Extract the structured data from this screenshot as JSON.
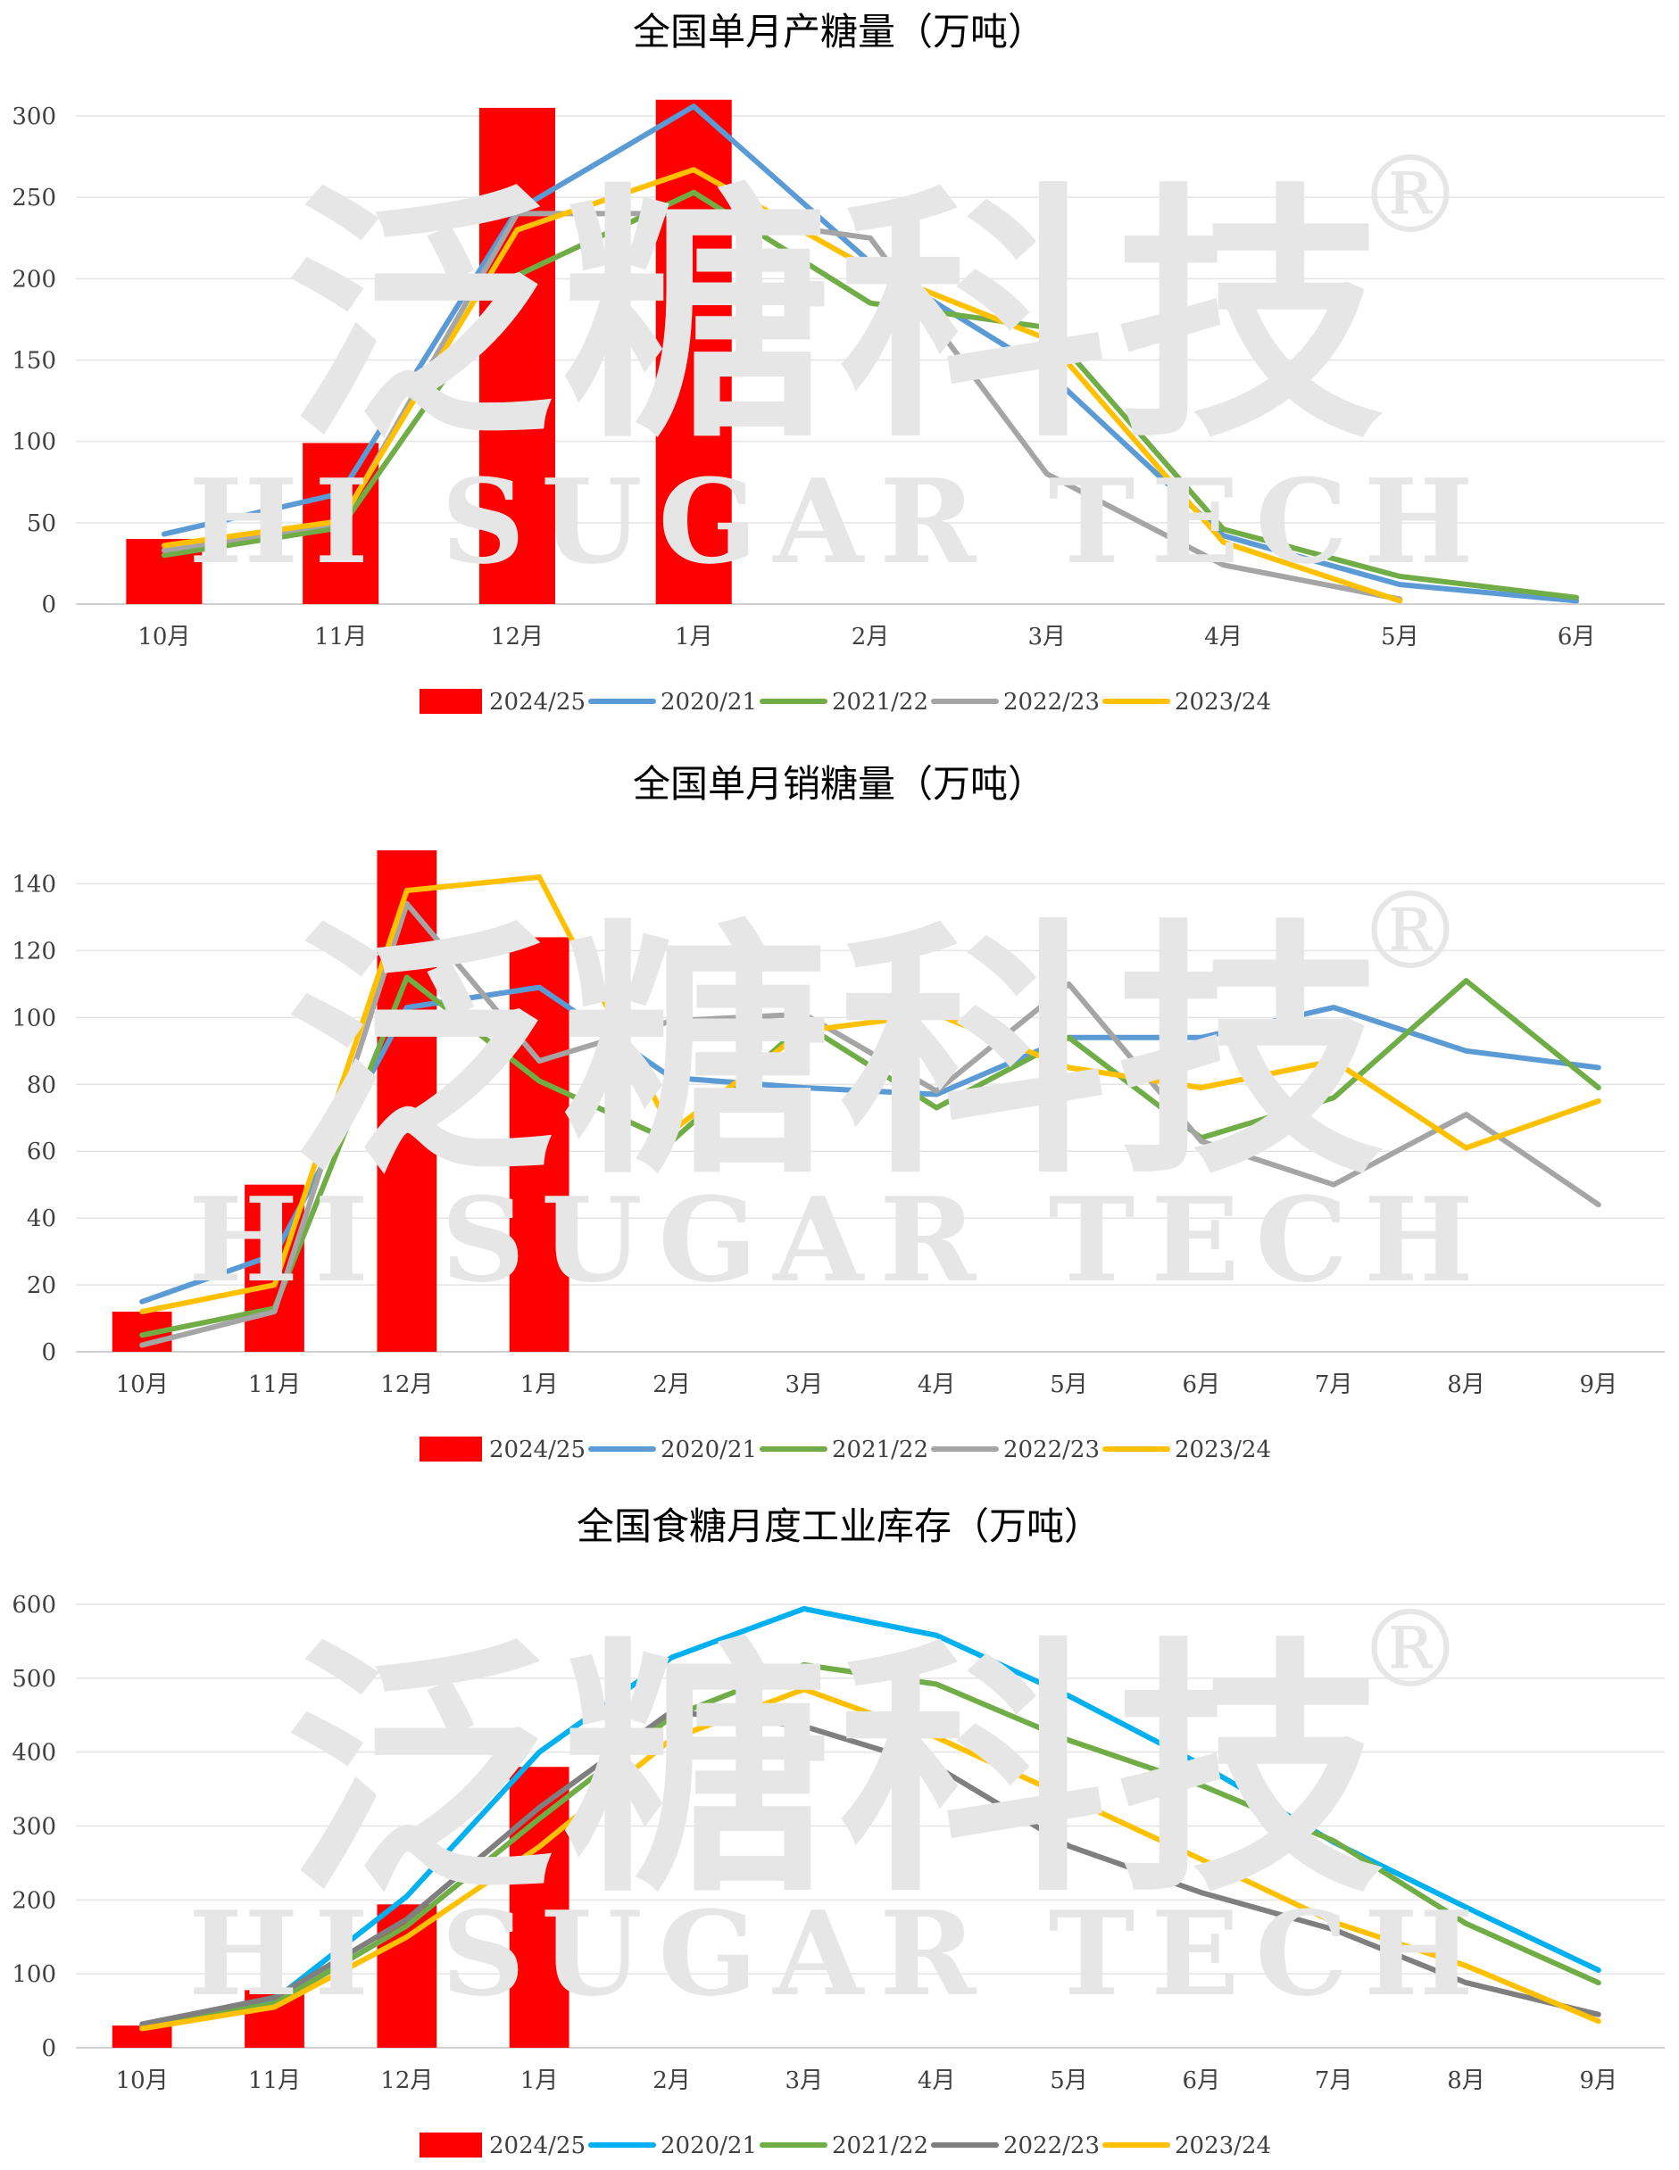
{
  "watermark": {
    "cn": "泛糖科技",
    "en": "HI SUGAR TECH",
    "mark": "®",
    "color": "#e6e6e6"
  },
  "chart_data": [
    {
      "type": "bar+line",
      "title": "全国单月产糖量（万吨）",
      "categories": [
        "10月",
        "11月",
        "12月",
        "1月",
        "2月",
        "3月",
        "4月",
        "5月",
        "6月"
      ],
      "ylim": [
        0,
        300
      ],
      "yticks": [
        "0",
        "50",
        "100",
        "150",
        "200",
        "250",
        "300"
      ],
      "grid": true,
      "legend_position": "bottom",
      "bar_series": {
        "name": "2024/25",
        "color": "#ff0000",
        "values": [
          40,
          99,
          305,
          310,
          null,
          null,
          null,
          null,
          null
        ]
      },
      "series": [
        {
          "name": "2020/21",
          "color": "#5b9bd5",
          "values": [
            43,
            68,
            242,
            306,
            210,
            143,
            42,
            12,
            2
          ]
        },
        {
          "name": "2021/22",
          "color": "#70ad47",
          "values": [
            30,
            47,
            202,
            253,
            185,
            170,
            46,
            17,
            4
          ]
        },
        {
          "name": "2022/23",
          "color": "#a5a5a5",
          "values": [
            33,
            50,
            240,
            240,
            225,
            80,
            24,
            3,
            null
          ]
        },
        {
          "name": "2023/24",
          "color": "#ffc000",
          "values": [
            36,
            51,
            230,
            267,
            206,
            163,
            38,
            2,
            null
          ]
        }
      ]
    },
    {
      "type": "bar+line",
      "title": "全国单月销糖量（万吨）",
      "categories": [
        "10月",
        "11月",
        "12月",
        "1月",
        "2月",
        "3月",
        "4月",
        "5月",
        "6月",
        "7月",
        "8月",
        "9月"
      ],
      "ylim": [
        0,
        150
      ],
      "yticks": [
        "0",
        "20",
        "40",
        "60",
        "80",
        "100",
        "120",
        "140"
      ],
      "grid": true,
      "legend_position": "bottom",
      "bar_series": {
        "name": "2024/25",
        "color": "#ff0000",
        "values": [
          12,
          50,
          150,
          124,
          null,
          null,
          null,
          null,
          null,
          null,
          null,
          null
        ]
      },
      "series": [
        {
          "name": "2020/21",
          "color": "#5b9bd5",
          "values": [
            15,
            29,
            103,
            109,
            82,
            79,
            77,
            94,
            94,
            103,
            90,
            85
          ]
        },
        {
          "name": "2021/22",
          "color": "#70ad47",
          "values": [
            5,
            13,
            112,
            81,
            63,
            98,
            73,
            94,
            64,
            76,
            111,
            79
          ]
        },
        {
          "name": "2022/23",
          "color": "#a5a5a5",
          "values": [
            2,
            12,
            134,
            87,
            99,
            101,
            78,
            110,
            63,
            50,
            71,
            44
          ]
        },
        {
          "name": "2023/24",
          "color": "#ffc000",
          "values": [
            12,
            20,
            138,
            142,
            66,
            96,
            101,
            85,
            79,
            87,
            61,
            75
          ]
        }
      ]
    },
    {
      "type": "bar+line",
      "title": "全国食糖月度工业库存（万吨）",
      "categories": [
        "10月",
        "11月",
        "12月",
        "1月",
        "2月",
        "3月",
        "4月",
        "5月",
        "6月",
        "7月",
        "8月",
        "9月"
      ],
      "ylim": [
        0,
        600
      ],
      "yticks": [
        "0",
        "100",
        "200",
        "300",
        "400",
        "500",
        "600"
      ],
      "grid": true,
      "legend_position": "bottom",
      "bar_series": {
        "name": "2024/25",
        "color": "#ff0000",
        "values": [
          30,
          78,
          194,
          380,
          null,
          null,
          null,
          null,
          null,
          null,
          null,
          null
        ]
      },
      "series": [
        {
          "name": "2020/21",
          "color": "#00b0f0",
          "values": [
            28,
            65,
            205,
            400,
            528,
            594,
            558,
            476,
            383,
            278,
            190,
            105
          ]
        },
        {
          "name": "2021/22",
          "color": "#70ad47",
          "values": [
            28,
            60,
            165,
            310,
            448,
            518,
            492,
            416,
            355,
            280,
            168,
            88
          ]
        },
        {
          "name": "2022/23",
          "color": "#7f7f7f",
          "values": [
            32,
            68,
            174,
            325,
            455,
            435,
            380,
            273,
            210,
            160,
            88,
            45
          ]
        },
        {
          "name": "2023/24",
          "color": "#ffc000",
          "values": [
            26,
            55,
            150,
            272,
            418,
            485,
            420,
            338,
            255,
            170,
            111,
            36
          ]
        }
      ]
    }
  ]
}
